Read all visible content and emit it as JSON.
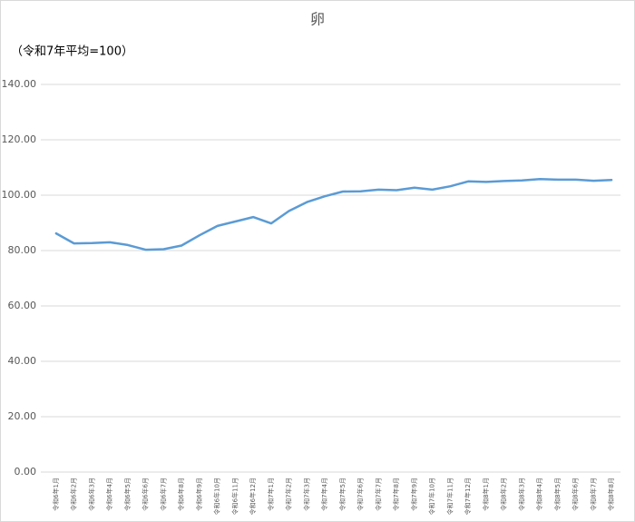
{
  "chart_data": {
    "type": "line",
    "title": "卵",
    "subtitle": "（令和7年平均=100）",
    "categories": [
      "令和6年1月",
      "令和6年2月",
      "令和6年3月",
      "令和6年4月",
      "令和6年5月",
      "令和6年6月",
      "令和6年7月",
      "令和6年8月",
      "令和6年9月",
      "令和6年10月",
      "令和6年11月",
      "令和6年12月",
      "令和7年1月",
      "令和7年2月",
      "令和7年3月",
      "令和7年4月",
      "令和7年5月",
      "令和7年6月",
      "令和7年7月",
      "令和7年8月",
      "令和7年9月",
      "令和7年10月",
      "令和7年11月",
      "令和7年12月",
      "令和8年1月",
      "令和8年2月",
      "令和8年3月",
      "令和8年4月",
      "令和8年5月",
      "令和8年6月",
      "令和8年7月",
      "令和8年8月"
    ],
    "values": [
      86.2,
      82.6,
      82.7,
      83.0,
      82.0,
      80.3,
      80.5,
      81.8,
      85.5,
      88.9,
      90.5,
      92.1,
      89.8,
      94.3,
      97.5,
      99.6,
      101.3,
      101.4,
      102.0,
      101.8,
      102.7,
      102.0,
      103.2,
      105.0,
      104.8,
      105.1,
      105.3,
      105.8,
      105.6,
      105.6,
      105.2,
      105.5
    ],
    "color": "#5b9bd5",
    "ylim": [
      0,
      140
    ],
    "yticks": [
      {
        "value": 0,
        "label": "0.00"
      },
      {
        "value": 20,
        "label": "20.00"
      },
      {
        "value": 40,
        "label": "40.00"
      },
      {
        "value": 60,
        "label": "60.00"
      },
      {
        "value": 80,
        "label": "80.00"
      },
      {
        "value": 100,
        "label": "100.00"
      },
      {
        "value": 120,
        "label": "120.00"
      },
      {
        "value": 140,
        "label": "140.00"
      }
    ],
    "grid": true
  }
}
